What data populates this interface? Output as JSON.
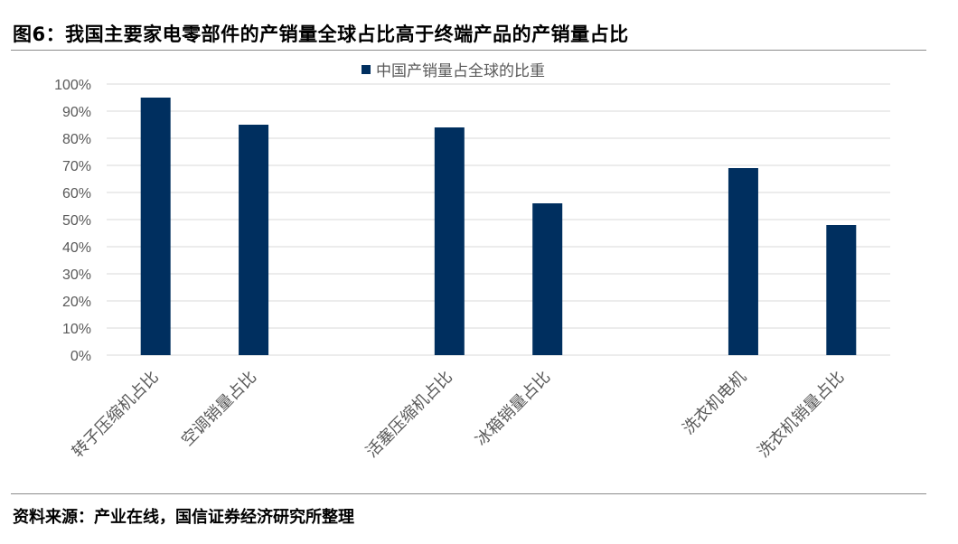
{
  "figure_title": "图6：我国主要家电零部件的产销量全球占比高于终端产品的产销量占比",
  "source_note": "资料来源：产业在线，国信证券经济研究所整理",
  "colors": {
    "bar": "#002f5f",
    "grid": "#d9d9d9",
    "text": "#595959"
  },
  "chart_data": {
    "type": "bar",
    "categories": [
      "转子压缩机占比",
      "空调销量占比",
      "",
      "活塞压缩机占比",
      "冰箱销量占比",
      "",
      "洗衣机电机",
      "洗衣机销量占比"
    ],
    "series": [
      {
        "name": "中国产销量占全球的比重",
        "values": [
          95,
          85,
          null,
          84,
          56,
          null,
          69,
          48
        ]
      }
    ],
    "y_ticks": [
      "0%",
      "10%",
      "20%",
      "30%",
      "40%",
      "50%",
      "60%",
      "70%",
      "80%",
      "90%",
      "100%"
    ],
    "ylim": [
      0,
      100
    ],
    "grid": true,
    "legend_position": "top"
  }
}
